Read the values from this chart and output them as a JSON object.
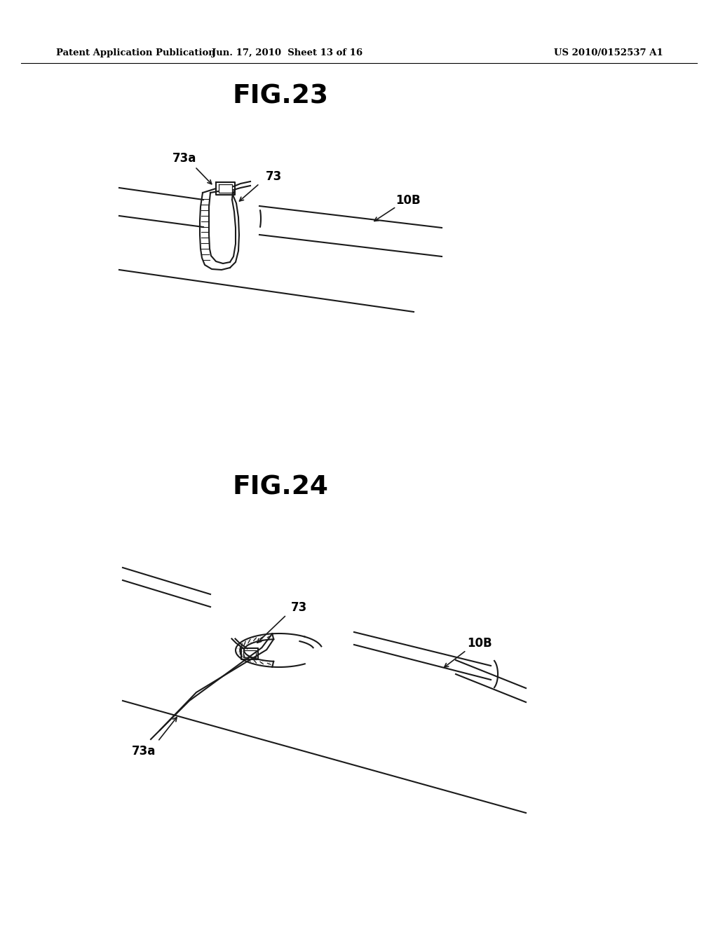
{
  "bg_color": "#ffffff",
  "header_left": "Patent Application Publication",
  "header_mid": "Jun. 17, 2010  Sheet 13 of 16",
  "header_right": "US 2010/0152537 A1",
  "fig23_title": "FIG.23",
  "fig24_title": "FIG.24",
  "label_73a_fig23": "73a",
  "label_73_fig23": "73",
  "label_10B_fig23": "10B",
  "label_73_fig24": "73",
  "label_10B_fig24": "10B",
  "label_73a_fig24": "73a",
  "line_color": "#1a1a1a"
}
